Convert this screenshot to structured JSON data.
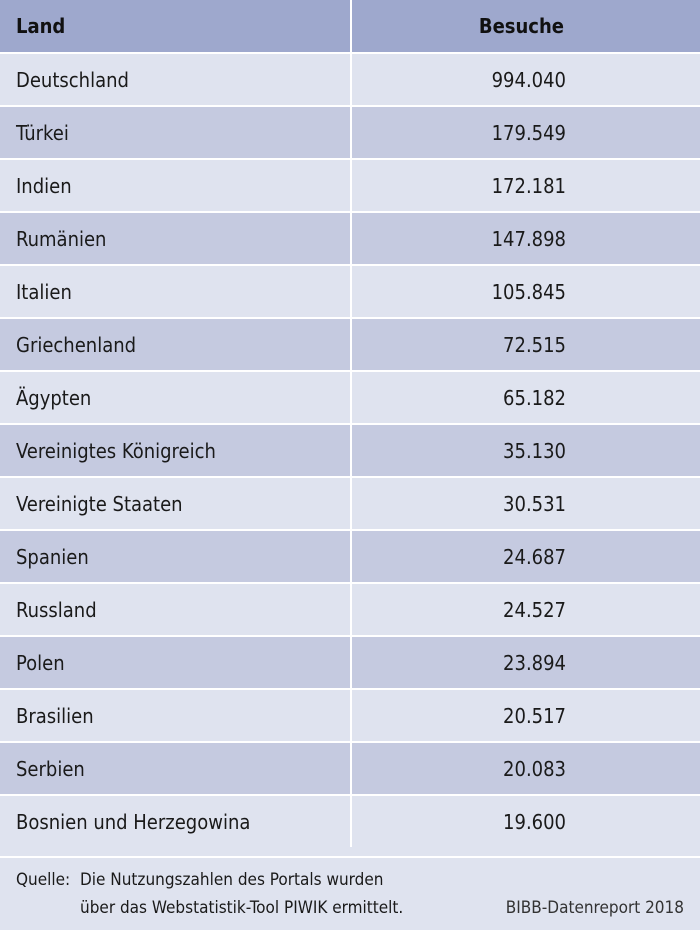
{
  "table": {
    "headers": {
      "land": "Land",
      "besuche": "Besuche"
    },
    "rows": [
      {
        "land": "Deutschland",
        "besuche": "994.040"
      },
      {
        "land": "Türkei",
        "besuche": "179.549"
      },
      {
        "land": "Indien",
        "besuche": "172.181"
      },
      {
        "land": "Rumänien",
        "besuche": "147.898"
      },
      {
        "land": "Italien",
        "besuche": "105.845"
      },
      {
        "land": "Griechenland",
        "besuche": "72.515"
      },
      {
        "land": "Ägypten",
        "besuche": "65.182"
      },
      {
        "land": "Vereinigtes Königreich",
        "besuche": "35.130"
      },
      {
        "land": "Vereinigte Staaten",
        "besuche": "30.531"
      },
      {
        "land": "Spanien",
        "besuche": "24.687"
      },
      {
        "land": "Russland",
        "besuche": "24.527"
      },
      {
        "land": "Polen",
        "besuche": "23.894"
      },
      {
        "land": "Brasilien",
        "besuche": "20.517"
      },
      {
        "land": "Serbien",
        "besuche": "20.083"
      },
      {
        "land": "Bosnien und Herzegowina",
        "besuche": "19.600"
      }
    ]
  },
  "footer": {
    "source_label": "Quelle:",
    "source_line1": "Die Nutzungszahlen des Portals wurden",
    "source_line2": "über das Webstatistik-Tool PIWIK ermittelt.",
    "credit": "BIBB-Datenreport 2018"
  },
  "colors": {
    "header_bg": "#9ea8cd",
    "row_light": "#dfe3ef",
    "row_dark": "#c5cae0"
  }
}
